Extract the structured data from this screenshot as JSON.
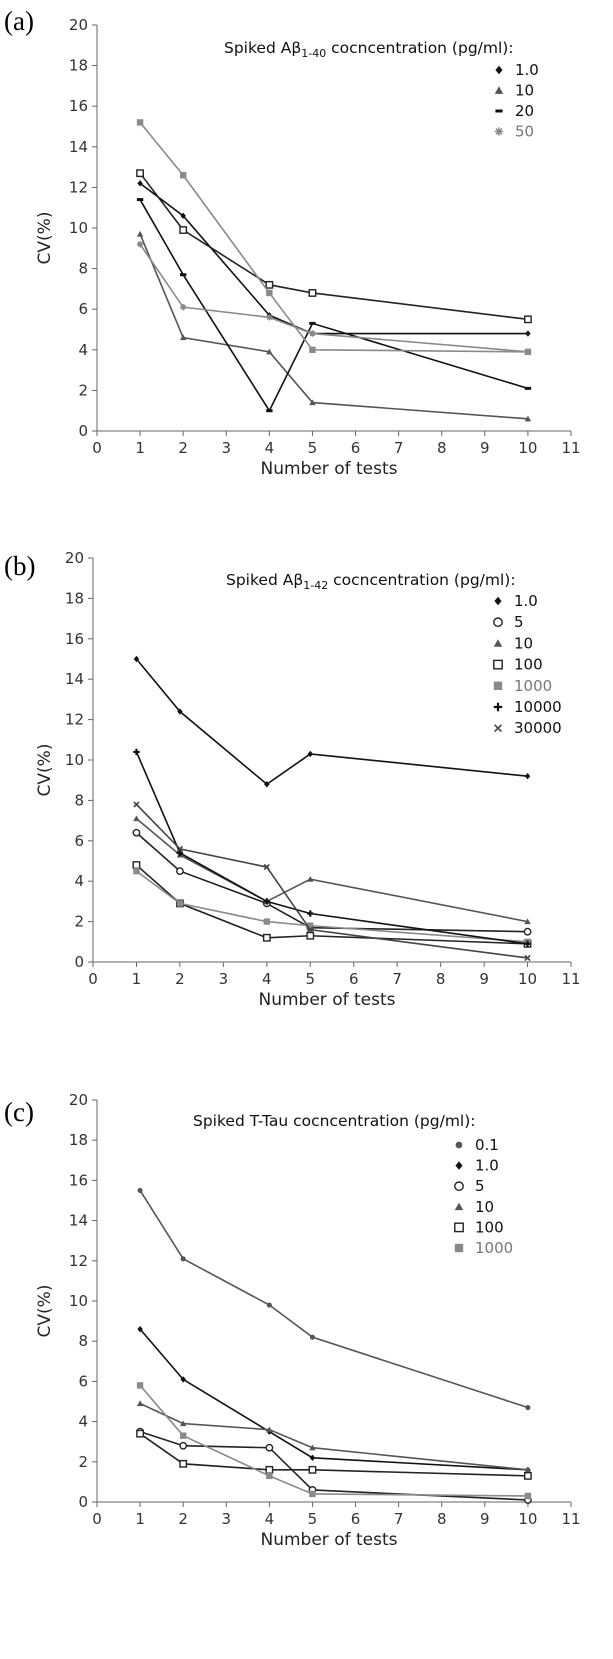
{
  "chart_data": [
    {
      "panel": "(a)",
      "type": "line",
      "xlabel": "Number of tests",
      "ylabel": "CV(%)",
      "xlim": [
        0,
        11
      ],
      "ylim": [
        0,
        20
      ],
      "xticks": [
        "0",
        "1",
        "2",
        "3",
        "4",
        "5",
        "6",
        "7",
        "8",
        "9",
        "10",
        "11"
      ],
      "yticks": [
        "0",
        "2",
        "4",
        "6",
        "8",
        "10",
        "12",
        "14",
        "16",
        "18",
        "20"
      ],
      "grid": false,
      "legend": {
        "placement": "top-right",
        "title_prefix": "Spiked A",
        "title_greek": "β",
        "title_sub": "1-40",
        "title_suffix": " cocncentration (pg/ml):"
      },
      "series": [
        {
          "name": "1.0",
          "marker": "diamond",
          "color": "#111111",
          "x": [
            1,
            2,
            4,
            5,
            10
          ],
          "y": [
            12.2,
            10.6,
            5.7,
            4.8,
            4.8
          ]
        },
        {
          "name": "10",
          "marker": "triangle",
          "color": "#555555",
          "x": [
            1,
            2,
            4,
            5,
            10
          ],
          "y": [
            9.7,
            4.6,
            3.9,
            1.4,
            0.6
          ]
        },
        {
          "name": "20",
          "marker": "dash",
          "color": "#111111",
          "x": [
            1,
            2,
            4,
            5,
            10
          ],
          "y": [
            11.4,
            7.7,
            1.0,
            5.3,
            2.1
          ]
        },
        {
          "name": "50",
          "marker": "asterisk",
          "color": "#888888",
          "x": [
            1,
            2,
            4,
            5,
            10
          ],
          "y": [
            9.2,
            6.1,
            5.6,
            4.8,
            3.9
          ]
        },
        {
          "name": "",
          "marker": "square-open",
          "color": "#222222",
          "x": [
            1,
            2,
            4,
            5,
            10
          ],
          "y": [
            12.7,
            9.9,
            7.2,
            6.8,
            5.5
          ]
        },
        {
          "name": "",
          "marker": "square-filled",
          "color": "#8a8a8a",
          "x": [
            1,
            2,
            4,
            5,
            10
          ],
          "y": [
            15.2,
            12.6,
            6.8,
            4.0,
            3.9
          ]
        }
      ]
    },
    {
      "panel": "(b)",
      "type": "line",
      "xlabel": "Number of tests",
      "ylabel": "CV(%)",
      "xlim": [
        0,
        11
      ],
      "ylim": [
        0,
        20
      ],
      "xticks": [
        "0",
        "1",
        "2",
        "3",
        "4",
        "5",
        "6",
        "7",
        "8",
        "9",
        "10",
        "11"
      ],
      "yticks": [
        "0",
        "2",
        "4",
        "6",
        "8",
        "10",
        "12",
        "14",
        "16",
        "18",
        "20"
      ],
      "grid": false,
      "legend": {
        "placement": "top-right",
        "title_prefix": "Spiked A",
        "title_greek": "β",
        "title_sub": "1-42",
        "title_suffix": " cocncentration (pg/ml):"
      },
      "series": [
        {
          "name": "1.0",
          "marker": "diamond",
          "color": "#111111",
          "x": [
            1,
            2,
            4,
            5,
            10
          ],
          "y": [
            15.0,
            12.4,
            8.8,
            10.3,
            9.2
          ]
        },
        {
          "name": "5",
          "marker": "circle-open",
          "color": "#222222",
          "x": [
            1,
            2,
            4,
            5,
            10
          ],
          "y": [
            6.4,
            4.5,
            2.9,
            1.7,
            1.5
          ]
        },
        {
          "name": "10",
          "marker": "triangle",
          "color": "#555555",
          "x": [
            1,
            2,
            4,
            5,
            10
          ],
          "y": [
            7.1,
            5.3,
            3.0,
            4.1,
            2.0
          ]
        },
        {
          "name": "100",
          "marker": "square-open",
          "color": "#222222",
          "x": [
            1,
            2,
            4,
            5,
            10
          ],
          "y": [
            4.8,
            2.9,
            1.2,
            1.3,
            0.9
          ]
        },
        {
          "name": "1000",
          "marker": "square-filled",
          "color": "#8a8a8a",
          "x": [
            1,
            2,
            4,
            5,
            10
          ],
          "y": [
            4.5,
            2.9,
            2.0,
            1.8,
            1.0
          ]
        },
        {
          "name": "10000",
          "marker": "plus",
          "color": "#111111",
          "x": [
            1,
            2,
            4,
            5,
            10
          ],
          "y": [
            10.4,
            5.4,
            3.0,
            2.4,
            0.9
          ]
        },
        {
          "name": "30000",
          "marker": "cross",
          "color": "#444444",
          "x": [
            1,
            2,
            4,
            5,
            10
          ],
          "y": [
            7.8,
            5.6,
            4.7,
            1.6,
            0.2
          ]
        }
      ]
    },
    {
      "panel": "(c)",
      "type": "line",
      "xlabel": "Number of tests",
      "ylabel": "CV(%)",
      "xlim": [
        0,
        11
      ],
      "ylim": [
        0,
        20
      ],
      "xticks": [
        "0",
        "1",
        "2",
        "3",
        "4",
        "5",
        "6",
        "7",
        "8",
        "9",
        "10",
        "11"
      ],
      "yticks": [
        "0",
        "2",
        "4",
        "6",
        "8",
        "10",
        "12",
        "14",
        "16",
        "18",
        "20"
      ],
      "grid": false,
      "legend": {
        "placement": "top-right",
        "title_prefix": "Spiked T-Tau cocncentration (pg/ml):",
        "title_greek": "",
        "title_sub": "",
        "title_suffix": ""
      },
      "series": [
        {
          "name": "0.1",
          "marker": "dot",
          "color": "#555555",
          "x": [
            1,
            2,
            4,
            5,
            10
          ],
          "y": [
            15.5,
            12.1,
            9.8,
            8.2,
            4.7
          ]
        },
        {
          "name": "1.0",
          "marker": "diamond",
          "color": "#111111",
          "x": [
            1,
            2,
            4,
            5,
            10
          ],
          "y": [
            8.6,
            6.1,
            3.5,
            2.2,
            1.6
          ]
        },
        {
          "name": "5",
          "marker": "circle-open",
          "color": "#222222",
          "x": [
            1,
            2,
            4,
            5,
            10
          ],
          "y": [
            3.5,
            2.8,
            2.7,
            0.6,
            0.1
          ]
        },
        {
          "name": "10",
          "marker": "triangle",
          "color": "#555555",
          "x": [
            1,
            2,
            4,
            5,
            10
          ],
          "y": [
            4.9,
            3.9,
            3.6,
            2.7,
            1.6
          ]
        },
        {
          "name": "100",
          "marker": "square-open",
          "color": "#222222",
          "x": [
            1,
            2,
            4,
            5,
            10
          ],
          "y": [
            3.4,
            1.9,
            1.6,
            1.6,
            1.3
          ]
        },
        {
          "name": "1000",
          "marker": "square-filled",
          "color": "#8a8a8a",
          "x": [
            1,
            2,
            4,
            5,
            10
          ],
          "y": [
            5.8,
            3.3,
            1.3,
            0.4,
            0.3
          ]
        }
      ]
    }
  ]
}
